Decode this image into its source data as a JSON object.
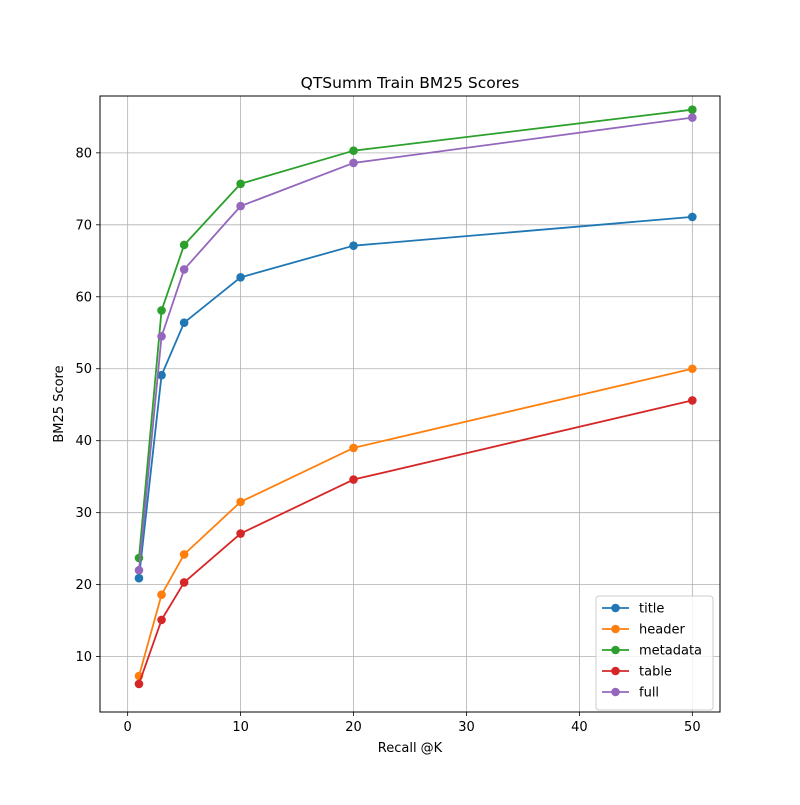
{
  "chart_data": {
    "type": "line",
    "title": "QTSumm Train BM25 Scores",
    "xlabel": "Recall @K",
    "ylabel": "BM25 Score",
    "x": [
      1,
      3,
      5,
      10,
      20,
      50
    ],
    "xlim": [
      -2.45,
      52.45
    ],
    "ylim": [
      2.3,
      87.9
    ],
    "xticks": [
      0,
      10,
      20,
      30,
      40,
      50
    ],
    "yticks": [
      10,
      20,
      30,
      40,
      50,
      60,
      70,
      80
    ],
    "grid": true,
    "legend_position": "lower-right",
    "series": [
      {
        "name": "title",
        "color": "#1f77b4",
        "values": [
          20.9,
          49.1,
          56.4,
          62.7,
          67.1,
          71.1
        ]
      },
      {
        "name": "header",
        "color": "#ff7f0e",
        "values": [
          7.3,
          18.6,
          24.2,
          31.5,
          39.0,
          50.0
        ]
      },
      {
        "name": "metadata",
        "color": "#2ca02c",
        "values": [
          23.7,
          58.1,
          67.2,
          75.7,
          80.3,
          86.0
        ]
      },
      {
        "name": "table",
        "color": "#d62728",
        "values": [
          6.2,
          15.1,
          20.3,
          27.1,
          34.6,
          45.6
        ]
      },
      {
        "name": "full",
        "color": "#9467bd",
        "values": [
          22.0,
          54.5,
          63.8,
          72.6,
          78.6,
          84.9
        ]
      }
    ]
  }
}
